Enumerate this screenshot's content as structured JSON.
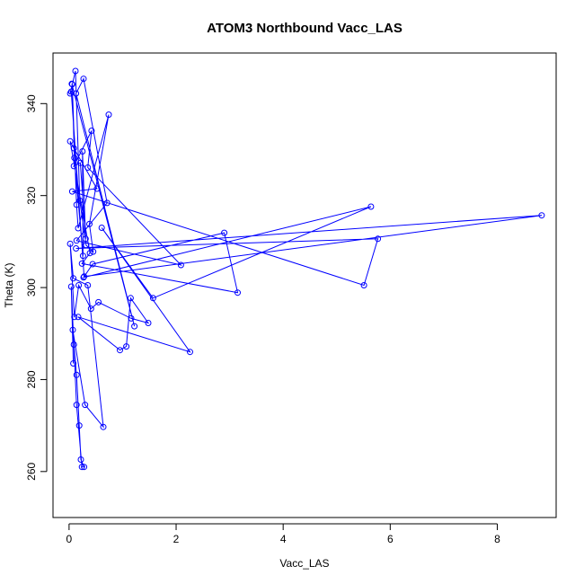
{
  "chart_data": {
    "type": "line",
    "title": "ATOM3 Northbound Vacc_LAS",
    "xlabel": "Vacc_LAS",
    "ylabel": "Theta (K)",
    "xlim": [
      -0.3,
      9.1
    ],
    "ylim": [
      250,
      351
    ],
    "xticks": [
      0,
      2,
      4,
      6,
      8
    ],
    "yticks": [
      260,
      280,
      300,
      320,
      340
    ],
    "grid": false,
    "series_color": "#0000ff",
    "marker": "open-circle",
    "series": [
      {
        "x": [
          0.08,
          0.04,
          0.14,
          0.24,
          0.28,
          0.22,
          0.19,
          0.14,
          0.09,
          0.07,
          0.3,
          0.64,
          0.35,
          0.08,
          0.02,
          0.1,
          0.18,
          0.41,
          0.55,
          1.16,
          1.48,
          1.15,
          1.07,
          0.95,
          0.17,
          2.26,
          0.61,
          1.57,
          5.64,
          0.27,
          0.44,
          2.9,
          3.15,
          0.24,
          0.39,
          0.02,
          0.09,
          0.52,
          0.06,
          5.51,
          5.77,
          0.13,
          8.83,
          0.28,
          0.04,
          0.02,
          0.12,
          0.2,
          0.32,
          0.45,
          0.38,
          0.74,
          0.17,
          0.14,
          0.06,
          0.1,
          0.26,
          0.25,
          0.31,
          0.21,
          0.09,
          0.42,
          0.35,
          2.09,
          0.14,
          0.71,
          0.27,
          0.13,
          1.22,
          0.05
        ],
        "y": [
          283.5,
          300.2,
          274.5,
          261.0,
          261.0,
          262.6,
          270.0,
          281.0,
          287.6,
          290.8,
          274.5,
          269.7,
          300.5,
          302.0,
          309.5,
          293.6,
          300.5,
          295.4,
          296.8,
          293.3,
          292.3,
          297.7,
          287.2,
          286.4,
          293.6,
          286.0,
          313.0,
          297.7,
          317.6,
          302.2,
          305.1,
          311.9,
          298.9,
          305.2,
          307.5,
          331.8,
          330.3,
          321.5,
          320.9,
          300.5,
          310.6,
          308.5,
          315.7,
          302.4,
          342.6,
          342.2,
          347.1,
          318.9,
          309.2,
          307.8,
          313.8,
          337.6,
          312.9,
          318.0,
          344.2,
          328.2,
          306.9,
          329.6,
          310.6,
          327.1,
          326.4,
          334.1,
          326.1,
          304.9,
          310.2,
          318.4,
          345.4,
          342.2,
          291.6,
          344.3
        ]
      }
    ]
  }
}
